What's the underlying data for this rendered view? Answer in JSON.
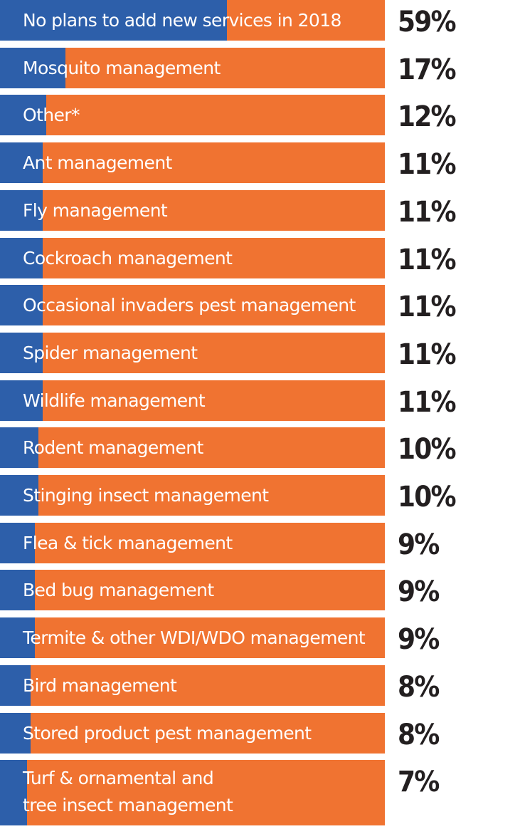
{
  "colors": {
    "value_fill": "#2D5FAA",
    "remainder_fill": "#F07331",
    "label_text": "#FFFFFF",
    "value_text": "#231F20"
  },
  "chart_data": {
    "type": "bar",
    "orientation": "horizontal",
    "stacked_to": 100,
    "categories": [
      "No plans to add new services in 2018",
      "Mosquito management",
      "Other*",
      "Ant management",
      "Fly management",
      "Cockroach management",
      "Occasional invaders pest management",
      "Spider management",
      "Wildlife management",
      "Rodent management",
      "Stinging insect management",
      "Flea & tick management",
      "Bed bug management",
      "Termite & other WDI/WDO management",
      "Bird management",
      "Stored product pest management",
      "Turf & ornamental and\ntree insect management"
    ],
    "values": [
      59,
      17,
      12,
      11,
      11,
      11,
      11,
      11,
      11,
      10,
      10,
      9,
      9,
      9,
      8,
      8,
      7
    ],
    "value_labels": [
      "59%",
      "17%",
      "12%",
      "11%",
      "11%",
      "11%",
      "11%",
      "11%",
      "11%",
      "10%",
      "10%",
      "9%",
      "9%",
      "9%",
      "8%",
      "8%",
      "7%"
    ],
    "unit": "%",
    "title": "",
    "xlabel": "",
    "ylabel": "",
    "xlim": [
      0,
      100
    ],
    "grid": false,
    "legend": "none"
  }
}
